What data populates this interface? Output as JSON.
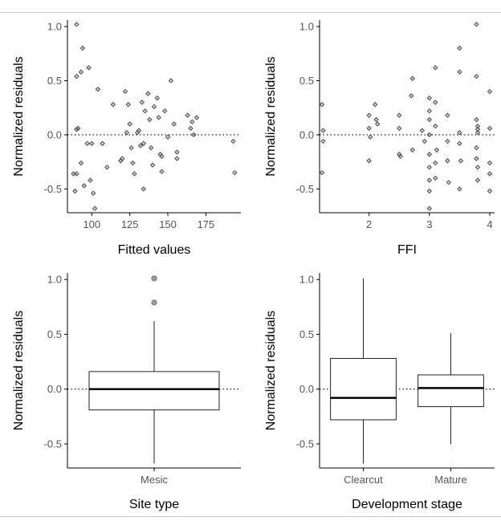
{
  "chart_data": [
    {
      "type": "scatter",
      "xlabel": "Fitted values",
      "ylabel": "Normalized residuals",
      "xlim": [
        84,
        198
      ],
      "ylim": [
        -0.72,
        1.06
      ],
      "xticks": [
        100,
        125,
        150,
        175
      ],
      "yticks": [
        -0.5,
        0.0,
        0.5,
        1.0
      ],
      "ytick_labels": [
        "-0.5",
        "0.0",
        "0.5",
        "1.0"
      ],
      "reference_line": 0,
      "points": [
        {
          "x": 90,
          "y": 1.02
        },
        {
          "x": 94,
          "y": 0.8
        },
        {
          "x": 98,
          "y": 0.62
        },
        {
          "x": 90,
          "y": 0.54
        },
        {
          "x": 93,
          "y": 0.58
        },
        {
          "x": 104,
          "y": 0.42
        },
        {
          "x": 91,
          "y": 0.06
        },
        {
          "x": 90,
          "y": 0.05
        },
        {
          "x": 88,
          "y": -0.36
        },
        {
          "x": 90,
          "y": -0.36
        },
        {
          "x": 93,
          "y": -0.26
        },
        {
          "x": 95,
          "y": -0.47
        },
        {
          "x": 89,
          "y": -0.52
        },
        {
          "x": 97,
          "y": -0.08
        },
        {
          "x": 100,
          "y": -0.08
        },
        {
          "x": 99,
          "y": -0.42
        },
        {
          "x": 101,
          "y": -0.54
        },
        {
          "x": 102,
          "y": -0.68
        },
        {
          "x": 107,
          "y": -0.08
        },
        {
          "x": 110,
          "y": -0.3
        },
        {
          "x": 114,
          "y": 0.28
        },
        {
          "x": 119,
          "y": -0.24
        },
        {
          "x": 120,
          "y": -0.22
        },
        {
          "x": 122,
          "y": 0.4
        },
        {
          "x": 124,
          "y": 0.28
        },
        {
          "x": 123,
          "y": 0.02
        },
        {
          "x": 125,
          "y": 0.1
        },
        {
          "x": 126,
          "y": -0.12
        },
        {
          "x": 127,
          "y": -0.26
        },
        {
          "x": 128,
          "y": -0.36
        },
        {
          "x": 130,
          "y": 0.02
        },
        {
          "x": 131,
          "y": 0.04
        },
        {
          "x": 132,
          "y": -0.1
        },
        {
          "x": 133,
          "y": 0.3
        },
        {
          "x": 134,
          "y": -0.08
        },
        {
          "x": 134,
          "y": -0.5
        },
        {
          "x": 135,
          "y": 0.22
        },
        {
          "x": 137,
          "y": 0.38
        },
        {
          "x": 138,
          "y": 0.14
        },
        {
          "x": 139,
          "y": -0.12
        },
        {
          "x": 140,
          "y": -0.28
        },
        {
          "x": 141,
          "y": 0.26
        },
        {
          "x": 143,
          "y": 0.34
        },
        {
          "x": 144,
          "y": 0.16
        },
        {
          "x": 145,
          "y": -0.18
        },
        {
          "x": 146,
          "y": -0.34
        },
        {
          "x": 146,
          "y": -0.2
        },
        {
          "x": 148,
          "y": 0.22
        },
        {
          "x": 150,
          "y": -0.02
        },
        {
          "x": 152,
          "y": 0.5
        },
        {
          "x": 154,
          "y": 0.1
        },
        {
          "x": 156,
          "y": -0.16
        },
        {
          "x": 156,
          "y": -0.22
        },
        {
          "x": 163,
          "y": 0.18
        },
        {
          "x": 165,
          "y": 0.06
        },
        {
          "x": 166,
          "y": 0.12
        },
        {
          "x": 167,
          "y": 0.0
        },
        {
          "x": 169,
          "y": 0.16
        },
        {
          "x": 193,
          "y": -0.06
        },
        {
          "x": 194,
          "y": -0.35
        }
      ]
    },
    {
      "type": "scatter",
      "xlabel": "FFI",
      "ylabel": "Normalized residuals",
      "xlim": [
        1.18,
        4.08
      ],
      "ylim": [
        -0.72,
        1.06
      ],
      "xticks": [
        2,
        3,
        4
      ],
      "yticks": [
        -0.5,
        0.0,
        0.5,
        1.0
      ],
      "ytick_labels": [
        "-0.5",
        "0.0",
        "0.5",
        "1.0"
      ],
      "reference_line": 0,
      "points": [
        {
          "x": 1.22,
          "y": 0.28
        },
        {
          "x": 1.24,
          "y": 0.04
        },
        {
          "x": 1.24,
          "y": -0.06
        },
        {
          "x": 1.22,
          "y": -0.35
        },
        {
          "x": 2.0,
          "y": 0.18
        },
        {
          "x": 2.0,
          "y": 0.06
        },
        {
          "x": 2.02,
          "y": -0.02
        },
        {
          "x": 2.0,
          "y": -0.24
        },
        {
          "x": 2.1,
          "y": 0.28
        },
        {
          "x": 2.12,
          "y": 0.14
        },
        {
          "x": 2.14,
          "y": 0.1
        },
        {
          "x": 2.5,
          "y": 0.18
        },
        {
          "x": 2.5,
          "y": 0.06
        },
        {
          "x": 2.5,
          "y": -0.18
        },
        {
          "x": 2.52,
          "y": -0.2
        },
        {
          "x": 2.72,
          "y": 0.52
        },
        {
          "x": 2.7,
          "y": 0.36
        },
        {
          "x": 2.72,
          "y": -0.14
        },
        {
          "x": 2.88,
          "y": 0.04
        },
        {
          "x": 2.92,
          "y": -0.06
        },
        {
          "x": 3.0,
          "y": 0.34
        },
        {
          "x": 3.0,
          "y": 0.22
        },
        {
          "x": 3.0,
          "y": 0.14
        },
        {
          "x": 3.0,
          "y": 0.0
        },
        {
          "x": 3.0,
          "y": -0.18
        },
        {
          "x": 3.0,
          "y": -0.3
        },
        {
          "x": 3.0,
          "y": -0.42
        },
        {
          "x": 3.0,
          "y": -0.52
        },
        {
          "x": 3.0,
          "y": -0.68
        },
        {
          "x": 3.1,
          "y": 0.62
        },
        {
          "x": 3.1,
          "y": 0.3
        },
        {
          "x": 3.1,
          "y": 0.08
        },
        {
          "x": 3.12,
          "y": -0.14
        },
        {
          "x": 3.1,
          "y": -0.26
        },
        {
          "x": 3.1,
          "y": -0.4
        },
        {
          "x": 3.3,
          "y": 0.18
        },
        {
          "x": 3.3,
          "y": -0.06
        },
        {
          "x": 3.3,
          "y": -0.24
        },
        {
          "x": 3.32,
          "y": -0.44
        },
        {
          "x": 3.5,
          "y": 0.8
        },
        {
          "x": 3.5,
          "y": 0.58
        },
        {
          "x": 3.5,
          "y": 0.02
        },
        {
          "x": 3.5,
          "y": -0.08
        },
        {
          "x": 3.52,
          "y": -0.24
        },
        {
          "x": 3.5,
          "y": -0.5
        },
        {
          "x": 3.78,
          "y": 1.02
        },
        {
          "x": 3.78,
          "y": 0.54
        },
        {
          "x": 3.78,
          "y": 0.14
        },
        {
          "x": 3.8,
          "y": 0.08
        },
        {
          "x": 3.8,
          "y": 0.05
        },
        {
          "x": 3.8,
          "y": 0.02
        },
        {
          "x": 3.78,
          "y": -0.12
        },
        {
          "x": 3.78,
          "y": -0.22
        },
        {
          "x": 3.8,
          "y": -0.3
        },
        {
          "x": 3.8,
          "y": -0.42
        },
        {
          "x": 4.0,
          "y": 0.4
        },
        {
          "x": 4.0,
          "y": 0.06
        },
        {
          "x": 4.0,
          "y": -0.26
        },
        {
          "x": 4.0,
          "y": -0.36
        },
        {
          "x": 4.0,
          "y": -0.52
        }
      ]
    },
    {
      "type": "box",
      "xlabel": "Site type",
      "ylabel": "Normalized residuals",
      "ylim": [
        -0.72,
        1.06
      ],
      "yticks": [
        -0.5,
        0.0,
        0.5,
        1.0
      ],
      "ytick_labels": [
        "-0.5",
        "0.0",
        "0.5",
        "1.0"
      ],
      "reference_line": 0,
      "categories": [
        "Mesic"
      ],
      "boxes": [
        {
          "category": "Mesic",
          "q1": -0.19,
          "median": 0.0,
          "q3": 0.16,
          "whisker_low": -0.68,
          "whisker_high": 0.62,
          "outliers": [
            1.01,
            0.79
          ]
        }
      ]
    },
    {
      "type": "box",
      "xlabel": "Development stage",
      "ylabel": "Normalized residuals",
      "ylim": [
        -0.72,
        1.06
      ],
      "yticks": [
        -0.5,
        0.0,
        0.5,
        1.0
      ],
      "ytick_labels": [
        "-0.5",
        "0.0",
        "0.5",
        "1.0"
      ],
      "reference_line": 0,
      "categories": [
        "Clearcut",
        "Mature"
      ],
      "boxes": [
        {
          "category": "Clearcut",
          "q1": -0.28,
          "median": -0.08,
          "q3": 0.28,
          "whisker_low": -0.68,
          "whisker_high": 1.01,
          "outliers": []
        },
        {
          "category": "Mature",
          "q1": -0.16,
          "median": 0.01,
          "q3": 0.13,
          "whisker_low": -0.5,
          "whisker_high": 0.51,
          "outliers": []
        }
      ]
    }
  ]
}
